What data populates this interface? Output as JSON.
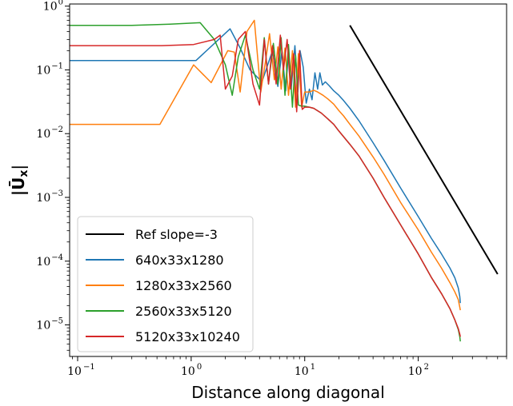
{
  "chart_data": {
    "type": "line",
    "xlabel": "Distance along diagonal",
    "ylabel": "|Ū",
    "ylabel_sub": "x",
    "ylabel_close": "|",
    "xscale": "log",
    "yscale": "log",
    "xlim": [
      0.085,
      600
    ],
    "ylim": [
      3.2e-06,
      1.08
    ],
    "x_ticks": [
      {
        "value": 0.1,
        "base": "10",
        "exp": "−1"
      },
      {
        "value": 1,
        "base": "10",
        "exp": "0"
      },
      {
        "value": 10,
        "base": "10",
        "exp": "1"
      },
      {
        "value": 100,
        "base": "10",
        "exp": "2"
      }
    ],
    "y_ticks": [
      {
        "value": 1e-05,
        "base": "10",
        "exp": "−5"
      },
      {
        "value": 0.0001,
        "base": "10",
        "exp": "−4"
      },
      {
        "value": 0.001,
        "base": "10",
        "exp": "−3"
      },
      {
        "value": 0.01,
        "base": "10",
        "exp": "−2"
      },
      {
        "value": 0.1,
        "base": "10",
        "exp": "−1"
      },
      {
        "value": 1,
        "base": "10",
        "exp": "0"
      }
    ],
    "grid": false,
    "legend_position": "lower-left",
    "series": [
      {
        "name": "Ref slope=-3",
        "color": "#000000",
        "x": [
          25,
          500
        ],
        "y": [
          0.5,
          6.25e-05
        ]
      },
      {
        "name": "640x33x1280",
        "color": "#1f77b4",
        "x": [
          0.085,
          1.1,
          2.2,
          2.7,
          3.3,
          4.2,
          5.2,
          5.8,
          6.3,
          6.8,
          7.2,
          7.6,
          8.2,
          8.7,
          9.1,
          9.7,
          10.3,
          11,
          11.6,
          12.3,
          13,
          13.6,
          14.3,
          15.2,
          16.5,
          18,
          20,
          22,
          25,
          30,
          40,
          50,
          70,
          100,
          130,
          160,
          190,
          210,
          225,
          232,
          235
        ],
        "y": [
          0.14,
          0.14,
          0.44,
          0.22,
          0.1,
          0.065,
          0.2,
          0.055,
          0.2,
          0.047,
          0.2,
          0.05,
          0.24,
          0.045,
          0.2,
          0.11,
          0.03,
          0.05,
          0.034,
          0.09,
          0.05,
          0.09,
          0.058,
          0.065,
          0.056,
          0.047,
          0.04,
          0.033,
          0.025,
          0.016,
          0.0072,
          0.0038,
          0.0014,
          0.0005,
          0.00023,
          0.00013,
          7.8e-05,
          5.5e-05,
          3.8e-05,
          2.8e-05,
          2.2e-05
        ]
      },
      {
        "name": "1280x33x2560",
        "color": "#ff7f0e",
        "x": [
          0.085,
          0.53,
          1.05,
          1.5,
          2.1,
          2.4,
          2.7,
          3.1,
          3.6,
          4.1,
          4.5,
          4.9,
          5.4,
          5.8,
          6.2,
          6.7,
          7.2,
          7.8,
          8.3,
          8.8,
          9.4,
          10,
          11,
          12,
          13,
          14.5,
          16,
          18,
          20,
          22,
          25,
          30,
          40,
          50,
          70,
          100,
          130,
          160,
          190,
          210,
          225,
          232,
          235
        ],
        "y": [
          0.014,
          0.014,
          0.12,
          0.063,
          0.2,
          0.19,
          0.045,
          0.4,
          0.6,
          0.045,
          0.13,
          0.37,
          0.07,
          0.23,
          0.05,
          0.22,
          0.04,
          0.2,
          0.026,
          0.18,
          0.026,
          0.045,
          0.045,
          0.048,
          0.045,
          0.04,
          0.035,
          0.029,
          0.023,
          0.019,
          0.014,
          0.0092,
          0.0043,
          0.0023,
          0.00083,
          0.00031,
          0.00014,
          7.8e-05,
          4.6e-05,
          3.3e-05,
          2.5e-05,
          1.9e-05,
          1.7e-05
        ]
      },
      {
        "name": "2560x33x5120",
        "color": "#2ca02c",
        "x": [
          0.085,
          0.3,
          0.65,
          1.2,
          1.6,
          2.0,
          2.3,
          2.6,
          3.0,
          3.5,
          4.0,
          4.4,
          4.8,
          5.3,
          5.8,
          6.2,
          6.7,
          7.2,
          7.8,
          8.3,
          8.8,
          9.4,
          10,
          11,
          12,
          14,
          16,
          18,
          20,
          25,
          30,
          40,
          50,
          70,
          100,
          130,
          160,
          190,
          210,
          225,
          232,
          235
        ],
        "y": [
          0.5,
          0.5,
          0.52,
          0.55,
          0.3,
          0.12,
          0.04,
          0.16,
          0.35,
          0.1,
          0.05,
          0.32,
          0.06,
          0.26,
          0.06,
          0.32,
          0.04,
          0.25,
          0.026,
          0.17,
          0.028,
          0.027,
          0.027,
          0.026,
          0.025,
          0.021,
          0.017,
          0.014,
          0.011,
          0.0068,
          0.0045,
          0.002,
          0.001,
          0.00037,
          0.00013,
          5.6e-05,
          3.1e-05,
          1.8e-05,
          1.2e-05,
          8.5e-06,
          6.5e-06,
          5.5e-06
        ]
      },
      {
        "name": "5120x33x10240",
        "color": "#d62728",
        "x": [
          0.085,
          0.55,
          1.05,
          1.6,
          1.8,
          2.0,
          2.3,
          2.6,
          3.0,
          3.5,
          4.0,
          4.4,
          4.8,
          5.2,
          5.6,
          6.1,
          6.5,
          7.0,
          7.5,
          8.0,
          8.5,
          9.0,
          9.5,
          10,
          11,
          12,
          14,
          16,
          18,
          20,
          25,
          30,
          40,
          50,
          70,
          100,
          130,
          160,
          190,
          210,
          225,
          232,
          235
        ],
        "y": [
          0.24,
          0.24,
          0.25,
          0.3,
          0.35,
          0.05,
          0.08,
          0.3,
          0.4,
          0.06,
          0.028,
          0.3,
          0.06,
          0.24,
          0.06,
          0.35,
          0.1,
          0.3,
          0.05,
          0.18,
          0.022,
          0.2,
          0.024,
          0.026,
          0.026,
          0.025,
          0.021,
          0.017,
          0.014,
          0.011,
          0.0068,
          0.0045,
          0.002,
          0.001,
          0.00037,
          0.00013,
          5.6e-05,
          3.1e-05,
          1.8e-05,
          1.2e-05,
          8.8e-06,
          7.2e-06,
          6.5e-06
        ]
      }
    ]
  }
}
